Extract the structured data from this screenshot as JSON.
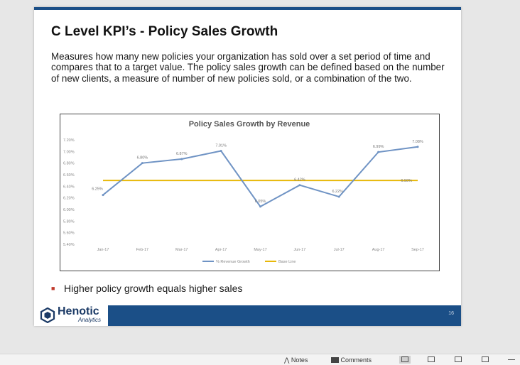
{
  "slide": {
    "title": "C Level KPI’s - Policy Sales Growth",
    "description": "Measures how many new policies your organization has sold over a set period of time and compares that to a target value. The policy sales growth can be defined based on the number of new clients, a measure of number of new policies sold, or a combination of the two.",
    "bullet": "Higher policy growth equals higher sales",
    "page_number": "16",
    "colors": {
      "accent": "#1b4f87",
      "growth_line": "#6f93c4",
      "base_line": "#e8b80a",
      "bullet": "#c0392b"
    }
  },
  "logo": {
    "name": "Henotic",
    "sub": "Analytics"
  },
  "chart_data": {
    "type": "line",
    "title": "Policy Sales Growth by Revenue",
    "categories": [
      "Jan-17",
      "Feb-17",
      "Mar-17",
      "Apr-17",
      "May-17",
      "Jun-17",
      "Jul-17",
      "Aug-17",
      "Sep-17"
    ],
    "series": [
      {
        "name": "% Revenue Growth",
        "values": [
          6.25,
          6.8,
          6.87,
          7.01,
          6.05,
          6.42,
          6.22,
          6.99,
          7.08
        ],
        "labels": [
          "6.25%",
          "6.80%",
          "6.87%",
          "7.01%",
          "6.05%",
          "6.42%",
          "6.22%",
          "6.99%",
          "7.08%"
        ]
      },
      {
        "name": "Base Line",
        "values": [
          6.5,
          6.5,
          6.5,
          6.5,
          6.5,
          6.5,
          6.5,
          6.5,
          6.5
        ],
        "end_label": "6.50%"
      }
    ],
    "yticks": [
      "7.20%",
      "7.00%",
      "6.80%",
      "6.60%",
      "6.40%",
      "6.20%",
      "6.00%",
      "5.80%",
      "5.60%",
      "5.40%"
    ],
    "ylim": [
      5.4,
      7.2
    ],
    "grid": false,
    "legend": "bottom"
  },
  "statusbar": {
    "notes": "Notes",
    "comments": "Comments"
  }
}
